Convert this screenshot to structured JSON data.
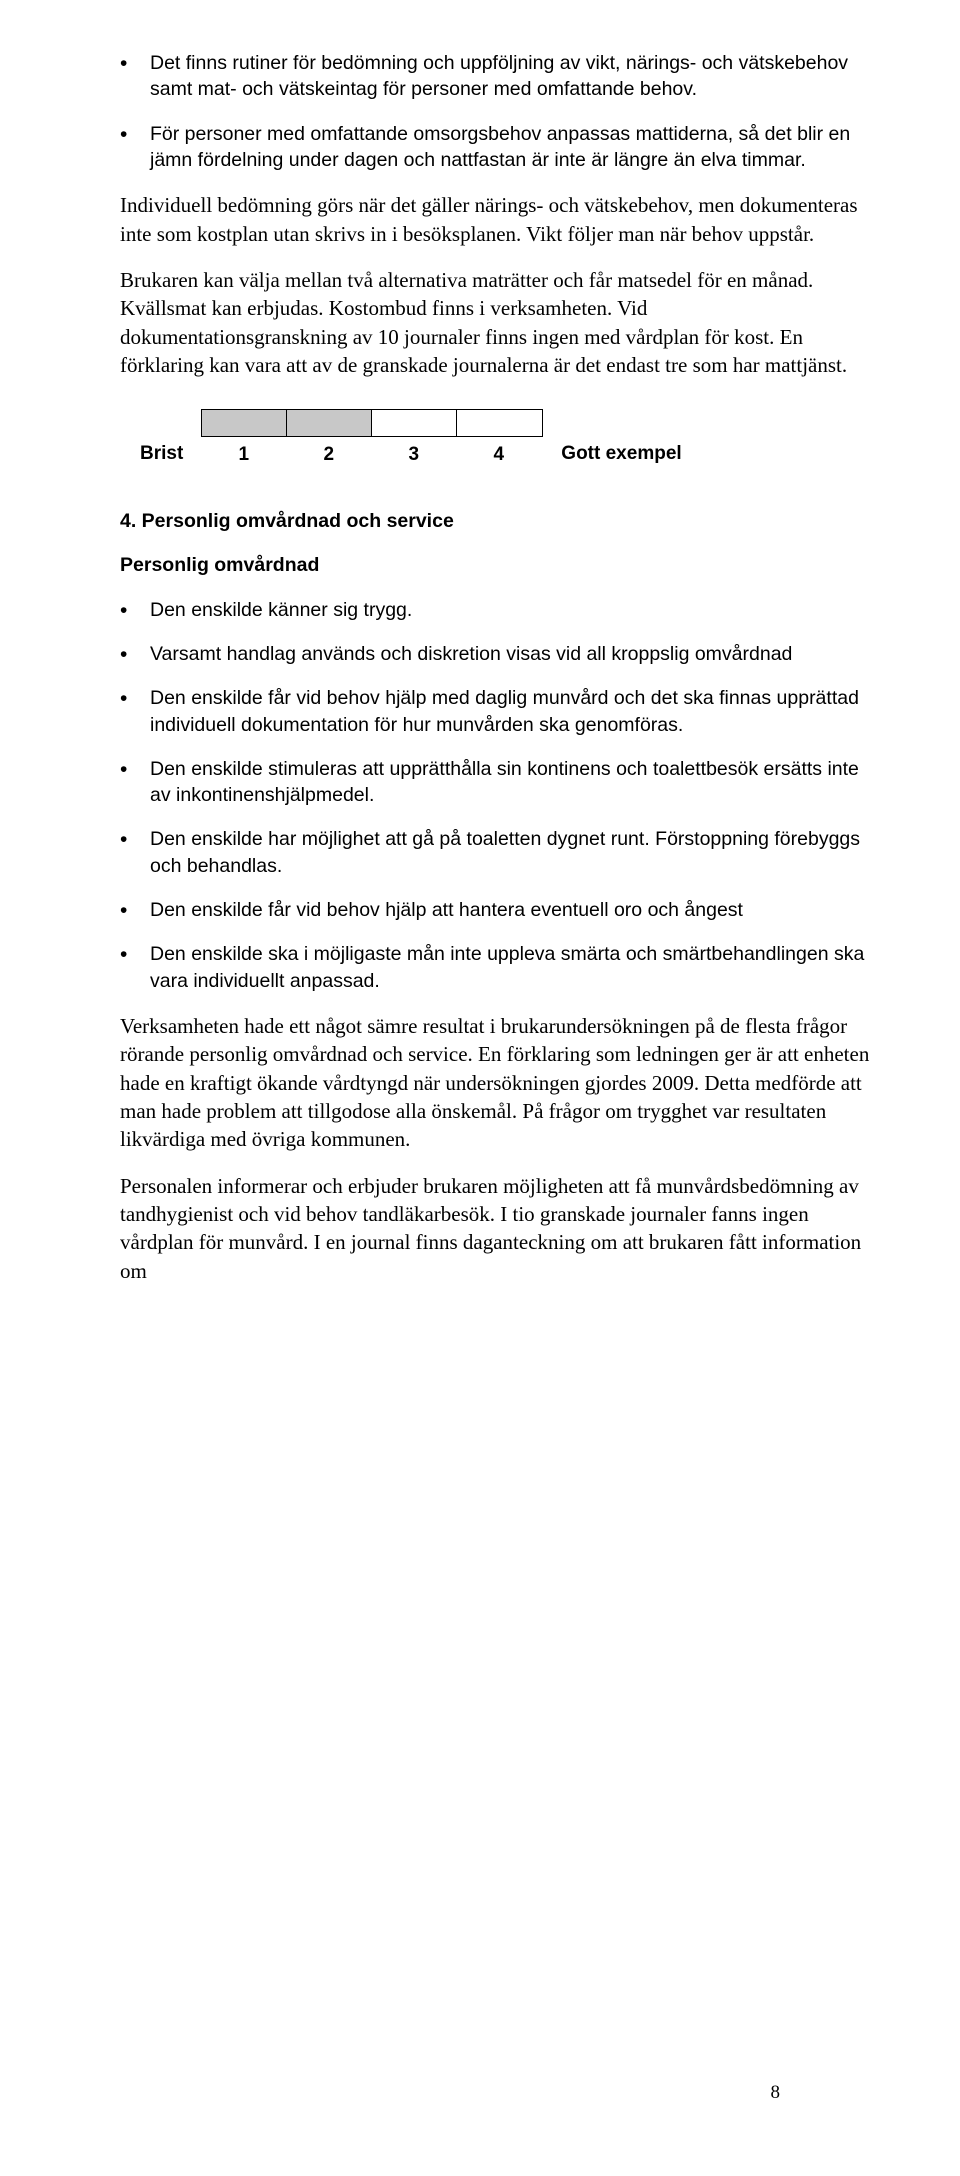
{
  "bullets_top": [
    "Det finns rutiner för bedömning och uppföljning av vikt, närings- och vätskebehov samt mat- och vätskeintag för personer med omfattande behov.",
    "För personer med omfattande omsorgsbehov anpassas mattiderna, så det blir en jämn fördelning under dagen och nattfastan är inte är längre än elva timmar."
  ],
  "para1": "Individuell bedömning görs när det gäller närings- och vätskebehov, men dokumenteras inte som kostplan utan skrivs in i besöksplanen. Vikt följer man när behov uppstår.",
  "para2": "Brukaren kan välja mellan två alternativa maträtter och får matsedel för en månad. Kvällsmat kan erbjudas. Kostombud finns i verksamheten. Vid dokumentationsgranskning av 10 journaler finns ingen med vårdplan för kost. En förklaring kan vara att av de granskade journalerna är det endast tre som har mattjänst.",
  "rating": {
    "left": "Brist",
    "right": "Gott exempel",
    "numbers": [
      "1",
      "2",
      "3",
      "4"
    ],
    "filled": [
      true,
      true,
      false,
      false
    ],
    "box_filled_color": "#c8c8c8",
    "box_border_color": "#000000"
  },
  "section_heading": "4. Personlig omvårdnad och service",
  "subheading": "Personlig omvårdnad",
  "bullets_mid": [
    "Den enskilde känner sig trygg.",
    "Varsamt handlag används och diskretion visas vid all kroppslig omvårdnad",
    "Den enskilde får vid behov hjälp med daglig munvård och det ska finnas upprättad individuell dokumentation för hur munvården ska genomföras.",
    "Den enskilde stimuleras att upprätthålla sin kontinens och toalettbesök ersätts inte av inkontinenshjälpmedel.",
    "Den enskilde har möjlighet att gå på toaletten dygnet runt. Förstoppning förebyggs och behandlas.",
    "Den enskilde får vid behov hjälp att hantera eventuell oro och ångest",
    "Den enskilde ska i möjligaste mån inte uppleva smärta och smärtbehandlingen ska vara individuellt anpassad."
  ],
  "para3": "Verksamheten hade ett något sämre resultat i brukarundersökningen på de flesta frågor rörande personlig omvårdnad och service. En förklaring som ledningen ger är att enheten hade en kraftigt ökande vårdtyngd när undersökningen gjordes 2009. Detta medförde att man hade problem att tillgodose alla önskemål. På frågor om trygghet var resultaten likvärdiga med övriga kommunen.",
  "para4": "Personalen informerar och erbjuder brukaren möjligheten att få munvårdsbedömning av tandhygienist och vid behov tandläkarbesök. I tio granskade journaler fanns ingen vårdplan för munvård. I en journal finns daganteckning om att brukaren fått information om",
  "page_number": "8"
}
